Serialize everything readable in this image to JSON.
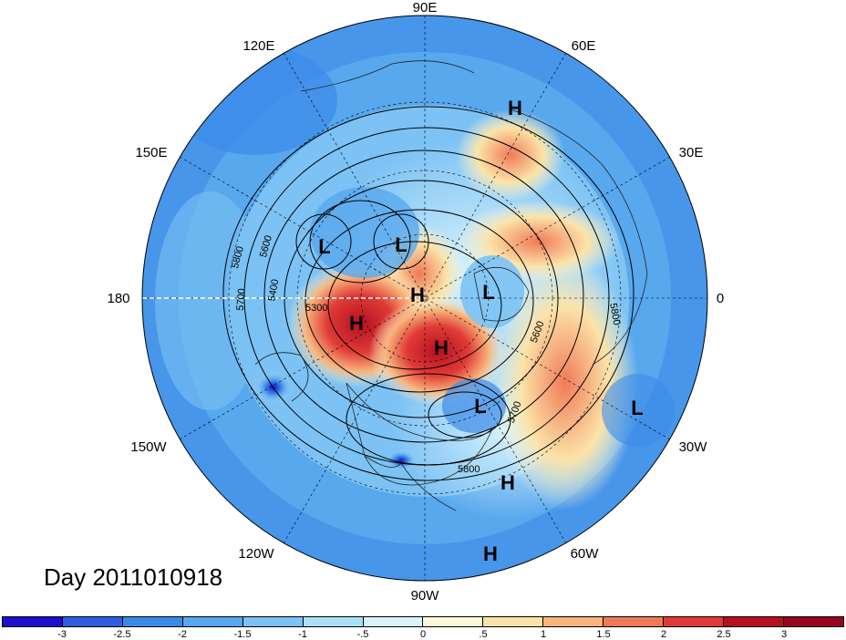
{
  "map": {
    "longitude_labels": [
      "90E",
      "60E",
      "30E",
      "0",
      "30W",
      "60W",
      "90W",
      "120W",
      "150W",
      "180",
      "150E",
      "120E"
    ],
    "contour_labels": [
      "5300",
      "5400",
      "5600",
      "5700",
      "5800",
      "5600",
      "5700",
      "5800",
      "5800"
    ],
    "pressure_centers": [
      {
        "type": "H",
        "region": "northern Russia"
      },
      {
        "type": "L",
        "region": "East Siberia"
      },
      {
        "type": "L",
        "region": "Chukotka"
      },
      {
        "type": "H",
        "region": "Arctic Ocean"
      },
      {
        "type": "H",
        "region": "Alaska"
      },
      {
        "type": "H",
        "region": "Canadian Arctic"
      },
      {
        "type": "L",
        "region": "Greenland"
      },
      {
        "type": "L",
        "region": "Hudson Bay"
      },
      {
        "type": "L",
        "region": "North Atlantic"
      },
      {
        "type": "H",
        "region": "Atlantic"
      },
      {
        "type": "H",
        "region": "Caribbean"
      }
    ]
  },
  "date_label": "Day 2011010918",
  "colorbar": {
    "ticks": [
      "-3",
      "-2.5",
      "-2",
      "-1.5",
      "-1",
      "-.5",
      "0",
      ".5",
      "1",
      "1.5",
      "2",
      "2.5",
      "3"
    ],
    "colors": [
      "#1e0fcc",
      "#2f5fe0",
      "#3c8ae8",
      "#58a8ee",
      "#7cc2f4",
      "#a9e0fa",
      "#d8f3fc",
      "#fdf8d8",
      "#fbe3a8",
      "#f8b47c",
      "#f07a58",
      "#e03a36",
      "#b41020",
      "#98061c"
    ]
  }
}
